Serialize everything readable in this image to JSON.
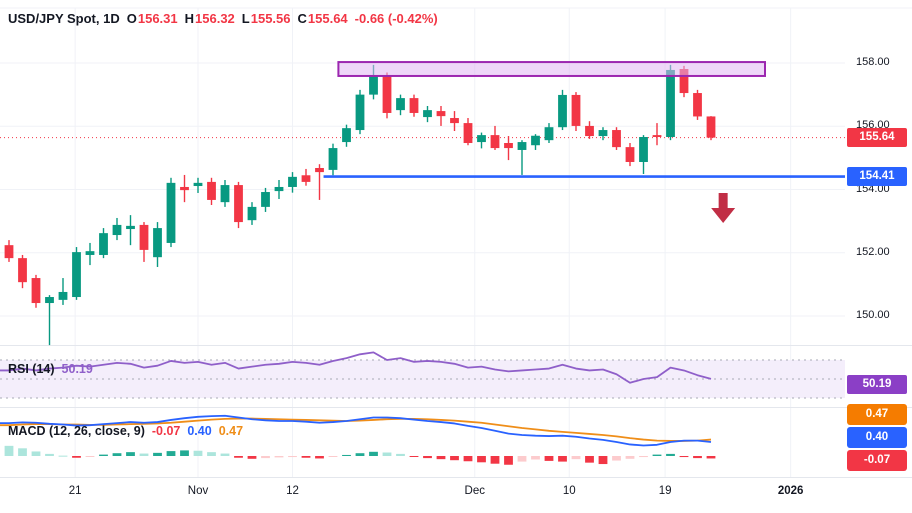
{
  "header": {
    "symbol": "USD/JPY Spot, 1D",
    "ohlc": [
      {
        "label": "O",
        "value": "156.31"
      },
      {
        "label": "H",
        "value": "156.32"
      },
      {
        "label": "L",
        "value": "155.56"
      },
      {
        "label": "C",
        "value": "155.64"
      }
    ],
    "change": "-0.66 (-0.42%)"
  },
  "colors": {
    "up": "#089981",
    "down": "#f23645",
    "hist_grow_above": "#22ab94",
    "hist_fall_above": "#ace5dc",
    "hist_fall_below": "#f23645",
    "hist_grow_below": "#fccbcd",
    "macd_line": "#2962ff",
    "signal_line": "#ef8e19",
    "rsi_line": "#8f5fc9",
    "rsi_band": "#f4eefb",
    "rsi_level_dash": "#a7aab5",
    "support_line": "#2962ff",
    "box_border": "#9c27b0",
    "box_fill": "rgba(224,183,242,0.55)",
    "arrow": "#c12e45",
    "grid": "#f0f2f7",
    "separator": "#e4e7ed",
    "badge_price": "#f23645",
    "badge_support": "#2962ff",
    "badge_rsi": "#8b3fc6",
    "badge_signal": "#f57c00",
    "badge_macd": "#2962ff",
    "badge_hist": "#f23645",
    "text": "#131722"
  },
  "price_axis": {
    "ticks": [
      {
        "label": "158.00",
        "value": 158
      },
      {
        "label": "156.00",
        "value": 156
      },
      {
        "label": "154.00",
        "value": 154
      },
      {
        "label": "152.00",
        "value": 152
      },
      {
        "label": "150.00",
        "value": 150
      }
    ],
    "last_price_badge": "155.64",
    "support_badge": "154.41"
  },
  "time_axis": {
    "labels": [
      {
        "text": "21",
        "i": 4.9,
        "bold": false
      },
      {
        "text": "Nov",
        "i": 14,
        "bold": false
      },
      {
        "text": "12",
        "i": 21,
        "bold": false
      },
      {
        "text": "Dec",
        "i": 34.5,
        "bold": false
      },
      {
        "text": "10",
        "i": 41.5,
        "bold": false
      },
      {
        "text": "19",
        "i": 48.6,
        "bold": false
      },
      {
        "text": "2026",
        "i": 57.9,
        "bold": true
      }
    ]
  },
  "rsi_panel": {
    "label": "RSI (14)",
    "value": "50.19",
    "badge": "50.19"
  },
  "macd_panel": {
    "label": "MACD (12, 26, close, 9)",
    "hist_value": "-0.07",
    "macd_value": "0.40",
    "signal_value": "0.47",
    "badges": {
      "signal": "0.47",
      "macd": "0.40",
      "hist": "-0.07"
    }
  },
  "chart_data": {
    "type": "candlestick",
    "title": "USD/JPY Spot, 1D",
    "price_range_shown": [
      150.0,
      158.0
    ],
    "candles_ohlc": [
      [
        152.24,
        152.4,
        151.71,
        151.83
      ],
      [
        151.83,
        151.93,
        150.88,
        151.07
      ],
      [
        151.2,
        151.3,
        150.26,
        150.41
      ],
      [
        150.41,
        150.66,
        149.08,
        150.6
      ],
      [
        150.51,
        151.2,
        150.35,
        150.76
      ],
      [
        150.6,
        152.18,
        150.51,
        152.02
      ],
      [
        151.93,
        152.31,
        151.61,
        152.05
      ],
      [
        151.93,
        152.78,
        151.83,
        152.62
      ],
      [
        152.56,
        153.1,
        152.4,
        152.88
      ],
      [
        152.75,
        153.19,
        152.24,
        152.85
      ],
      [
        152.88,
        152.97,
        151.71,
        152.09
      ],
      [
        151.86,
        152.97,
        151.55,
        152.78
      ],
      [
        152.31,
        154.37,
        152.18,
        154.21
      ],
      [
        154.08,
        154.46,
        153.6,
        153.98
      ],
      [
        154.11,
        154.37,
        153.89,
        154.21
      ],
      [
        154.24,
        154.37,
        153.51,
        153.67
      ],
      [
        153.6,
        154.3,
        153.45,
        154.14
      ],
      [
        154.14,
        154.24,
        152.78,
        152.97
      ],
      [
        153.03,
        153.6,
        152.88,
        153.45
      ],
      [
        153.45,
        154.05,
        153.29,
        153.92
      ],
      [
        153.95,
        154.3,
        153.7,
        154.08
      ],
      [
        154.08,
        154.55,
        153.9,
        154.4
      ],
      [
        154.45,
        154.65,
        154.12,
        154.24
      ],
      [
        154.68,
        154.8,
        153.67,
        154.55
      ],
      [
        154.62,
        155.45,
        154.45,
        155.31
      ],
      [
        155.5,
        156.05,
        155.35,
        155.94
      ],
      [
        155.88,
        157.15,
        155.75,
        157.0
      ],
      [
        157.0,
        157.94,
        156.85,
        157.59
      ],
      [
        157.59,
        157.7,
        156.25,
        156.42
      ],
      [
        156.51,
        157.0,
        156.35,
        156.89
      ],
      [
        156.89,
        157.0,
        156.3,
        156.42
      ],
      [
        156.29,
        156.64,
        156.13,
        156.51
      ],
      [
        156.48,
        156.64,
        156.01,
        156.32
      ],
      [
        156.26,
        156.48,
        155.85,
        156.1
      ],
      [
        156.1,
        156.26,
        155.4,
        155.47
      ],
      [
        155.5,
        155.8,
        155.3,
        155.72
      ],
      [
        155.72,
        156.01,
        155.25,
        155.31
      ],
      [
        155.47,
        155.69,
        154.93,
        155.31
      ],
      [
        155.25,
        155.56,
        154.46,
        155.5
      ],
      [
        155.4,
        155.75,
        155.25,
        155.7
      ],
      [
        155.56,
        156.1,
        155.47,
        155.97
      ],
      [
        155.97,
        157.15,
        155.88,
        156.99
      ],
      [
        156.99,
        157.08,
        155.85,
        156.01
      ],
      [
        156.01,
        156.16,
        155.6,
        155.69
      ],
      [
        155.69,
        155.97,
        155.56,
        155.88
      ],
      [
        155.88,
        155.97,
        155.25,
        155.34
      ],
      [
        155.34,
        155.47,
        154.74,
        154.87
      ],
      [
        154.87,
        155.72,
        154.49,
        155.66
      ],
      [
        155.72,
        156.1,
        155.4,
        155.66
      ],
      [
        155.66,
        157.94,
        155.56,
        157.78
      ],
      [
        157.81,
        157.91,
        156.92,
        157.05
      ],
      [
        157.05,
        157.15,
        156.2,
        156.31
      ],
      [
        156.31,
        156.32,
        155.56,
        155.64
      ]
    ],
    "overlays": {
      "last_price_line": {
        "price": 155.64
      },
      "support_line": {
        "price": 154.41,
        "start_index": 23.3
      },
      "resistance_box": {
        "top_price": 158.03,
        "bottom_price": 157.59,
        "start_index": 24.4,
        "end_index": 56.0
      },
      "down_arrow": {
        "center_index": 52.9,
        "top_price": 153.89,
        "bottom_price": 152.94
      }
    },
    "rsi": {
      "period": 14,
      "levels": [
        70,
        50,
        30
      ],
      "last_value": 50.19,
      "series": [
        59,
        61,
        59,
        61,
        62,
        64,
        63,
        65,
        67,
        66,
        62,
        64,
        69,
        67,
        68,
        65,
        67,
        61,
        63,
        65,
        66,
        68,
        67,
        65,
        69,
        72,
        76,
        78,
        70,
        72,
        68,
        69,
        68,
        66,
        62,
        63,
        60,
        58,
        59,
        60,
        61,
        65,
        61,
        59,
        60,
        55,
        46,
        50,
        52,
        62,
        59,
        54,
        50.19
      ]
    },
    "macd": {
      "params": [
        12,
        26,
        "close",
        9
      ],
      "last": {
        "macd": 0.4,
        "signal": 0.47,
        "hist": -0.07
      },
      "macd_series": [
        0.94,
        0.96,
        0.95,
        0.92,
        0.9,
        0.87,
        0.88,
        0.91,
        0.94,
        0.97,
        0.95,
        0.97,
        1.03,
        1.08,
        1.12,
        1.14,
        1.15,
        1.1,
        1.05,
        1.02,
        1.0,
        1.0,
        0.98,
        0.95,
        0.97,
        1.0,
        1.05,
        1.1,
        1.1,
        1.08,
        1.04,
        1.0,
        0.97,
        0.93,
        0.86,
        0.8,
        0.72,
        0.64,
        0.6,
        0.58,
        0.57,
        0.58,
        0.55,
        0.5,
        0.46,
        0.4,
        0.33,
        0.3,
        0.32,
        0.4,
        0.44,
        0.44,
        0.4
      ],
      "signal_series": [
        0.88,
        0.9,
        0.91,
        0.91,
        0.9,
        0.9,
        0.89,
        0.89,
        0.9,
        0.91,
        0.92,
        0.93,
        0.95,
        0.98,
        1.01,
        1.04,
        1.06,
        1.07,
        1.07,
        1.06,
        1.05,
        1.04,
        1.03,
        1.02,
        1.01,
        1.0,
        1.01,
        1.03,
        1.05,
        1.06,
        1.06,
        1.05,
        1.03,
        1.01,
        0.98,
        0.95,
        0.9,
        0.85,
        0.8,
        0.76,
        0.72,
        0.69,
        0.66,
        0.63,
        0.6,
        0.56,
        0.51,
        0.47,
        0.44,
        0.43,
        0.43,
        0.44,
        0.47
      ],
      "hist_series": [
        0.29,
        0.22,
        0.13,
        0.06,
        0.01,
        -0.05,
        -0.02,
        0.04,
        0.08,
        0.11,
        0.07,
        0.09,
        0.14,
        0.16,
        0.15,
        0.11,
        0.07,
        -0.05,
        -0.08,
        -0.06,
        -0.04,
        -0.03,
        -0.05,
        -0.07,
        -0.02,
        0.03,
        0.08,
        0.12,
        0.1,
        0.06,
        -0.02,
        -0.06,
        -0.09,
        -0.12,
        -0.15,
        -0.18,
        -0.22,
        -0.25,
        -0.16,
        -0.1,
        -0.14,
        -0.16,
        -0.09,
        -0.19,
        -0.23,
        -0.13,
        -0.08,
        -0.03,
        0.04,
        0.06,
        -0.03,
        -0.06,
        -0.07
      ],
      "hist_prev_before_first": 0.35
    }
  }
}
